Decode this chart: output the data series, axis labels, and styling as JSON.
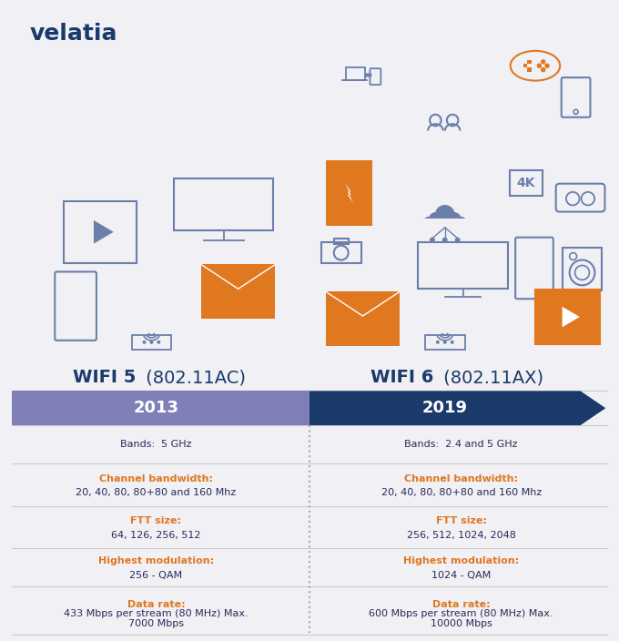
{
  "background_color": "#f0f0f5",
  "logo_text": "velatia",
  "logo_color": "#1a3a6b",
  "wifi5_title_bold": "WIFI 5",
  "wifi5_title_normal": " (802.11AC)",
  "wifi6_title_bold": "WIFI 6",
  "wifi6_title_normal": " (802.11AX)",
  "title_color": "#1a3a6b",
  "arrow_left_color": "#8080b8",
  "arrow_right_color": "#1a3a6b",
  "arrow_left_text": "2013",
  "arrow_right_text": "2019",
  "arrow_text_color": "#ffffff",
  "label_color": "#e07820",
  "value_color": "#2a2a5a",
  "wifi5_bands_value": "Bands:  5 GHz",
  "wifi6_bands_value": "Bands:  2.4 and 5 GHz",
  "wifi5_channel_label": "Channel bandwidth:",
  "wifi5_channel_value": "20, 40, 80, 80+80 and 160 Mhz",
  "wifi6_channel_label": "Channel bandwidth:",
  "wifi6_channel_value": "20, 40, 80, 80+80 and 160 Mhz",
  "wifi5_ftt_label": "FTT size:",
  "wifi5_ftt_value": "64, 126, 256, 512",
  "wifi6_ftt_label": "FTT size:",
  "wifi6_ftt_value": "256, 512, 1024, 2048",
  "wifi5_mod_label": "Highest modulation:",
  "wifi5_mod_value": "256 - QAM",
  "wifi6_mod_label": "Highest modulation:",
  "wifi6_mod_value": "1024 - QAM",
  "wifi5_data_label": "Data rate:",
  "wifi5_data_value": "433 Mbps per stream (80 MHz) Max.\n7000 Mbps",
  "wifi6_data_label": "Data rate:",
  "wifi6_data_value": "600 Mbps per stream (80 MHz) Max.\n10000 Mbps",
  "separator_color": "#cccccc",
  "dotted_line_color": "#aaaaaa",
  "icon_blue": "#6b7faa",
  "icon_dark_blue": "#1a3a6b",
  "icon_orange": "#e07820",
  "title_fontsize": 14,
  "label_fontsize": 8,
  "value_fontsize": 8,
  "arrow_fontsize": 13
}
